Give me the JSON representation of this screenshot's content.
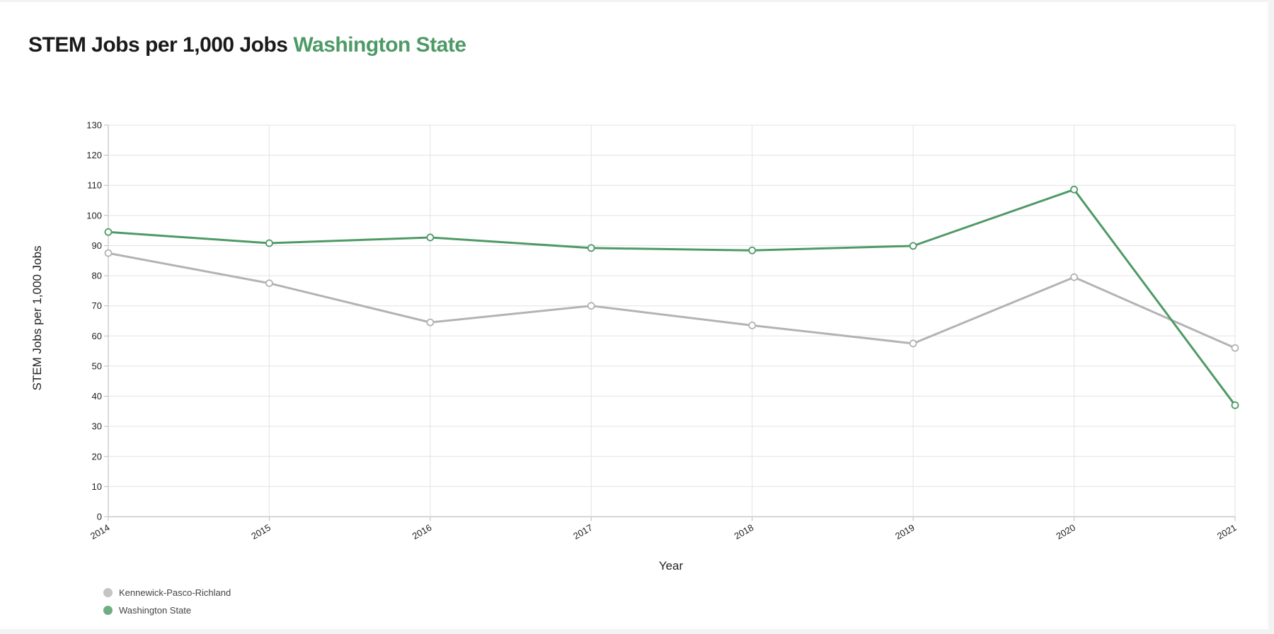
{
  "title": {
    "main": "STEM Jobs per 1,000 Jobs",
    "highlight": "Washington State"
  },
  "chart_data": {
    "type": "line",
    "x": [
      "2014",
      "2015",
      "2016",
      "2017",
      "2018",
      "2019",
      "2020",
      "2021"
    ],
    "series": [
      {
        "name": "Kennewick-Pasco-Richland",
        "color": "#b3b3b3",
        "values": [
          87.5,
          77.5,
          64.5,
          70,
          63.5,
          57.5,
          79.5,
          56
        ]
      },
      {
        "name": "Washington State",
        "color": "#4e9a66",
        "values": [
          94.5,
          90.8,
          92.7,
          89.2,
          88.4,
          89.9,
          108.6,
          37
        ]
      }
    ],
    "xlabel": "Year",
    "ylabel": "STEM Jobs per 1,000 Jobs",
    "ylim": [
      0,
      130
    ],
    "yticks": [
      0,
      10,
      20,
      30,
      40,
      50,
      60,
      70,
      80,
      90,
      100,
      110,
      120,
      130
    ],
    "grid": true,
    "legend_position": "bottom-left"
  }
}
